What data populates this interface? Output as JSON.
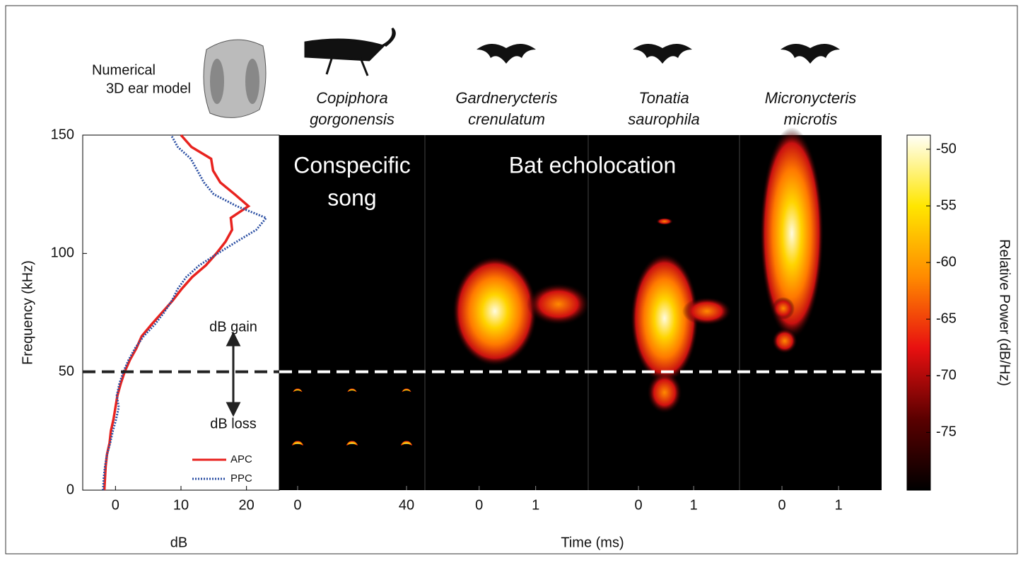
{
  "chart_data": [
    {
      "type": "line",
      "ylabel": "Frequency (kHz)",
      "xlabel": "dB",
      "xlim": [
        -5,
        25
      ],
      "xticks": [
        0,
        10,
        20
      ],
      "ylim": [
        0,
        150
      ],
      "yticks": [
        0,
        50,
        100,
        150
      ],
      "threshold": 50,
      "model_label": [
        "Numerical",
        "3D ear model"
      ],
      "gain_label": "dB gain",
      "loss_label": "dB loss",
      "frequencies": [
        0,
        5,
        10,
        15,
        20,
        25,
        30,
        35,
        40,
        45,
        50,
        55,
        60,
        65,
        70,
        75,
        80,
        85,
        90,
        95,
        100,
        105,
        110,
        115,
        120,
        125,
        130,
        135,
        140,
        145,
        150
      ],
      "series": [
        {
          "name": "APC",
          "color": "#e8231f",
          "style": "solid",
          "values": [
            -1.7,
            -1.6,
            -1.5,
            -1.3,
            -0.9,
            -0.7,
            -0.3,
            0,
            0.3,
            0.8,
            1.4,
            2.2,
            3.2,
            4.0,
            5.5,
            7.1,
            8.7,
            10.1,
            11.7,
            13.8,
            15.4,
            16.8,
            17.8,
            17.6,
            20.3,
            18.2,
            16.0,
            14.9,
            14.6,
            11.6,
            10.0
          ]
        },
        {
          "name": "PPC",
          "color": "#2b4fa3",
          "style": "dotted",
          "values": [
            -1.9,
            -1.8,
            -1.6,
            -1.3,
            -0.8,
            -0.4,
            0.1,
            0.5,
            0.2,
            0.6,
            1.2,
            2.0,
            3.0,
            4.3,
            6.0,
            7.4,
            8.6,
            9.5,
            10.8,
            12.8,
            15.6,
            18.5,
            21.5,
            23.0,
            18.5,
            15.0,
            13.5,
            12.5,
            11.5,
            9.5,
            8.5
          ]
        }
      ]
    },
    {
      "type": "spectrogram",
      "xlabel": "Time (ms)",
      "ylim": [
        0,
        150
      ],
      "group_labels": {
        "song": [
          "Conspecific",
          "song"
        ],
        "bat": "Bat echolocation"
      },
      "panels": [
        {
          "species": [
            "Copiphora",
            "gorgonensis"
          ],
          "xlim": [
            -6.75,
            46.75
          ],
          "xticks": [
            0,
            40
          ]
        },
        {
          "species": [
            "Gardnerycteris",
            "crenulatum"
          ],
          "xlim": [
            -0.96,
            1.93
          ],
          "xticks": [
            0,
            1
          ]
        },
        {
          "species": [
            "Tonatia",
            "saurophila"
          ],
          "xlim": [
            -0.91,
            1.83
          ],
          "xticks": [
            0,
            1
          ]
        },
        {
          "species": [
            "Micronycteris",
            "microtis"
          ],
          "xlim": [
            -0.75,
            1.76
          ],
          "xticks": [
            0,
            1
          ]
        }
      ]
    },
    {
      "type": "colorbar",
      "label": "Relative Power (dB/Hz)",
      "ylim": [
        -80.1,
        -48.75
      ],
      "yticks": [
        -50,
        -55,
        -60,
        -65,
        -70,
        -75
      ]
    }
  ]
}
